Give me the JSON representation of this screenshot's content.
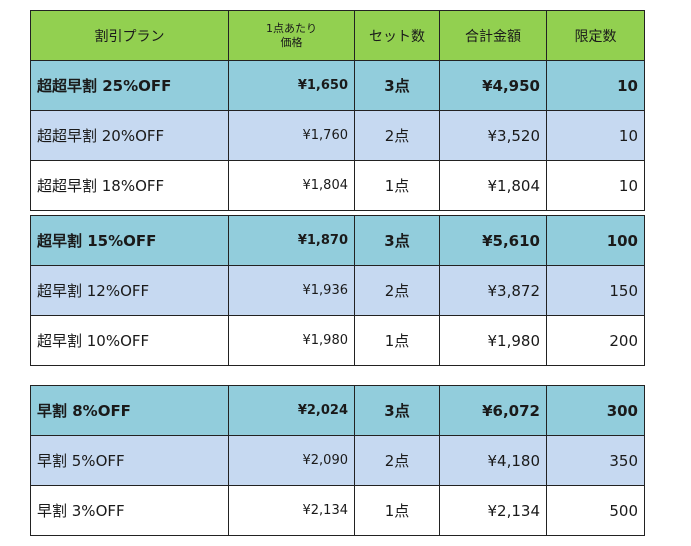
{
  "headers": {
    "plan": "割引プラン",
    "unit_line1": "1点あたり",
    "unit_line2": "価格",
    "sets": "セット数",
    "total": "合計金額",
    "limit": "限定数"
  },
  "groups": [
    {
      "rows": [
        {
          "plan": "超超早割 25%OFF",
          "unit": "¥1,650",
          "sets": "3点",
          "total": "¥4,950",
          "limit": "10"
        },
        {
          "plan": "超超早割 20%OFF",
          "unit": "¥1,760",
          "sets": "2点",
          "total": "¥3,520",
          "limit": "10"
        },
        {
          "plan": "超超早割 18%OFF",
          "unit": "¥1,804",
          "sets": "1点",
          "total": "¥1,804",
          "limit": "10"
        }
      ]
    },
    {
      "rows": [
        {
          "plan": "超早割 15%OFF",
          "unit": "¥1,870",
          "sets": "3点",
          "total": "¥5,610",
          "limit": "100"
        },
        {
          "plan": "超早割 12%OFF",
          "unit": "¥1,936",
          "sets": "2点",
          "total": "¥3,872",
          "limit": "150"
        },
        {
          "plan": "超早割 10%OFF",
          "unit": "¥1,980",
          "sets": "1点",
          "total": "¥1,980",
          "limit": "200"
        }
      ]
    },
    {
      "rows": [
        {
          "plan": "早割 8%OFF",
          "unit": "¥2,024",
          "sets": "3点",
          "total": "¥6,072",
          "limit": "300"
        },
        {
          "plan": "早割 5%OFF",
          "unit": "¥2,090",
          "sets": "2点",
          "total": "¥4,180",
          "limit": "350"
        },
        {
          "plan": "早割 3%OFF",
          "unit": "¥2,134",
          "sets": "1点",
          "total": "¥2,134",
          "limit": "500"
        }
      ]
    }
  ],
  "colors": {
    "header": "#92d050",
    "featured_row": "#92cddc",
    "alt_row": "#c6d9f1",
    "plain_row": "#ffffff"
  }
}
